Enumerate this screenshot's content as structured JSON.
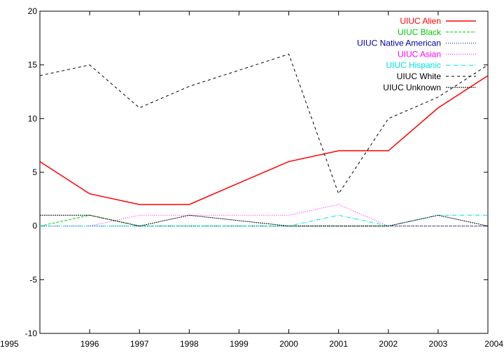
{
  "chart_data": {
    "type": "line",
    "x": [
      1995,
      1996,
      1997,
      1998,
      1999,
      2000,
      2001,
      2002,
      2003,
      2004
    ],
    "xlim": [
      1995,
      2004
    ],
    "ylim": [
      -10,
      20
    ],
    "x_ticks": [
      "1995",
      "1996",
      "1997",
      "1998",
      "1999",
      "2000",
      "2001",
      "2002",
      "2003",
      "2004"
    ],
    "y_ticks": [
      "-10",
      "-5",
      "0",
      "5",
      "10",
      "15",
      "20"
    ],
    "grid": false,
    "legend_position": "top-right",
    "series": [
      {
        "name": "UIUC Alien",
        "color": "#ff0000",
        "dash": "solid",
        "values": [
          6,
          3,
          2,
          2,
          4,
          6,
          7,
          7,
          11,
          14
        ]
      },
      {
        "name": "UIUC Black",
        "color": "#00c800",
        "dash": "dashed",
        "values": [
          0,
          1,
          0,
          0,
          0,
          0,
          0,
          0,
          0,
          0
        ]
      },
      {
        "name": "UIUC Native American",
        "color": "#0000a0",
        "dash": "dotted",
        "values": [
          0,
          0,
          0,
          0,
          0,
          0,
          0,
          0,
          0,
          0
        ]
      },
      {
        "name": "UIUC Asian",
        "color": "#ff00ff",
        "dash": "dotted",
        "values": [
          0,
          0,
          1,
          1,
          1,
          1,
          2,
          0,
          0,
          0
        ]
      },
      {
        "name": "UIUC Hispanic",
        "color": "#00e0e0",
        "dash": "dashdot",
        "values": [
          0,
          0,
          0,
          0,
          0,
          0,
          1,
          0,
          1,
          1
        ]
      },
      {
        "name": "UIUC White",
        "color": "#000000",
        "dash": "longdash",
        "values": [
          14,
          15,
          11,
          13,
          14.5,
          16,
          3,
          10,
          12,
          15
        ]
      },
      {
        "name": "UIUC Unknown",
        "color": "#000000",
        "dash": "densedot",
        "values": [
          1,
          1,
          0,
          1,
          0.5,
          0,
          0,
          0,
          1,
          0
        ]
      }
    ]
  }
}
